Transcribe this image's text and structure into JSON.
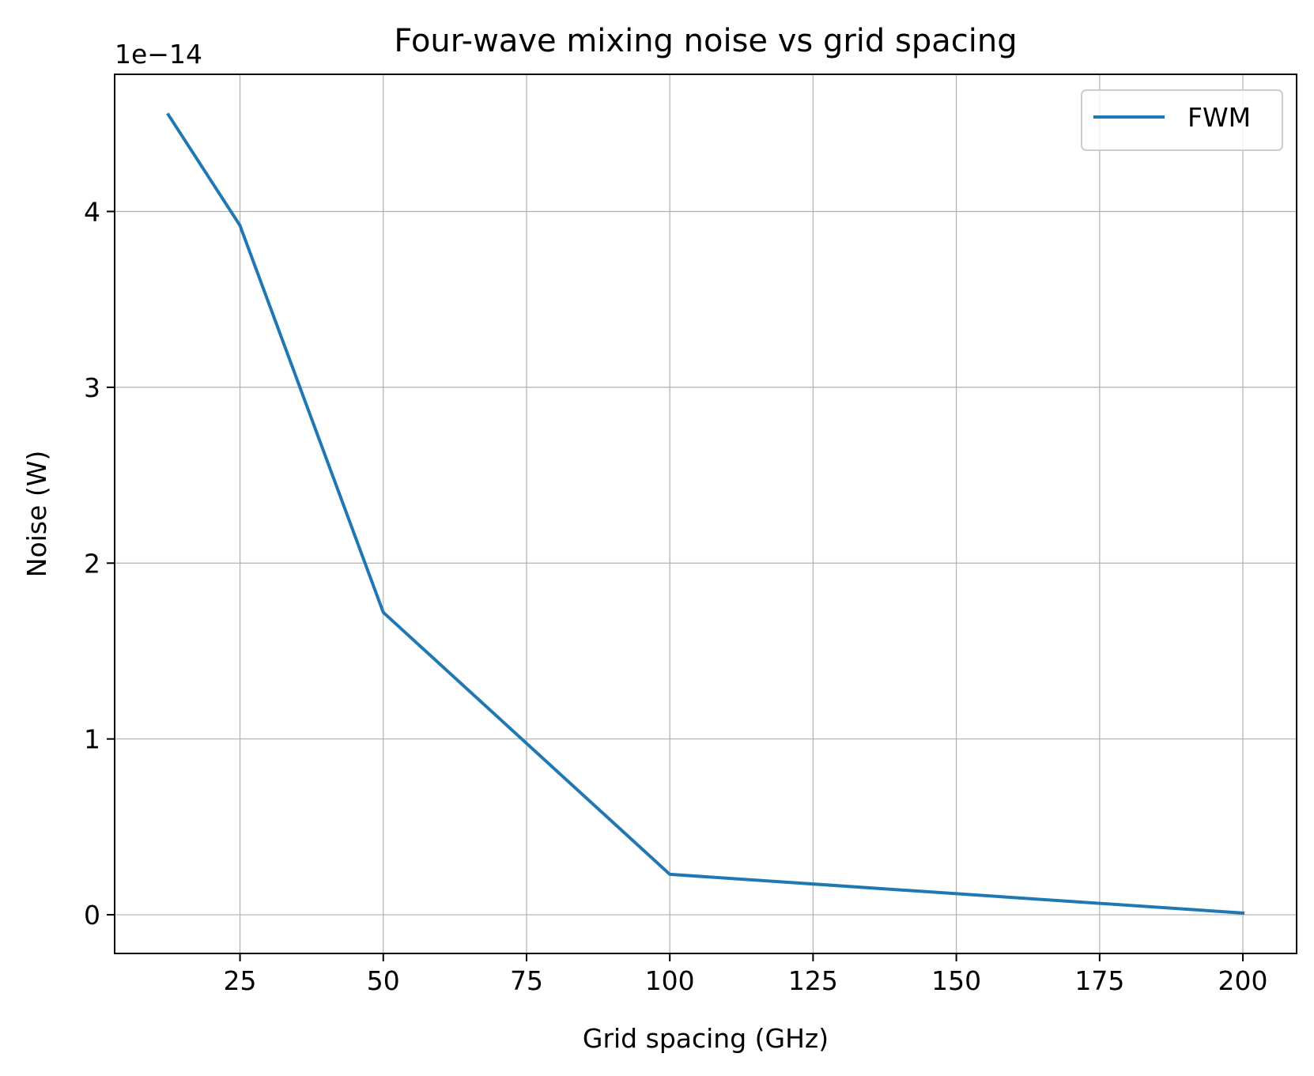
{
  "chart_data": {
    "type": "line",
    "title": "Four-wave mixing noise vs grid spacing",
    "xlabel": "Grid spacing (GHz)",
    "ylabel": "Noise (W)",
    "y_offset_label": "1e−14",
    "xlim": [
      3.125,
      209.375
    ],
    "ylim": [
      -0.22,
      4.78
    ],
    "x_ticks": [
      25,
      50,
      75,
      100,
      125,
      150,
      175,
      200
    ],
    "y_ticks": [
      0,
      1,
      2,
      3,
      4
    ],
    "grid": true,
    "legend_position": "top-right",
    "series": [
      {
        "name": "FWM",
        "color": "#1f77b4",
        "x": [
          12.5,
          25,
          50,
          100,
          200
        ],
        "y": [
          4.55,
          3.92,
          1.72,
          0.23,
          0.01
        ]
      }
    ]
  }
}
